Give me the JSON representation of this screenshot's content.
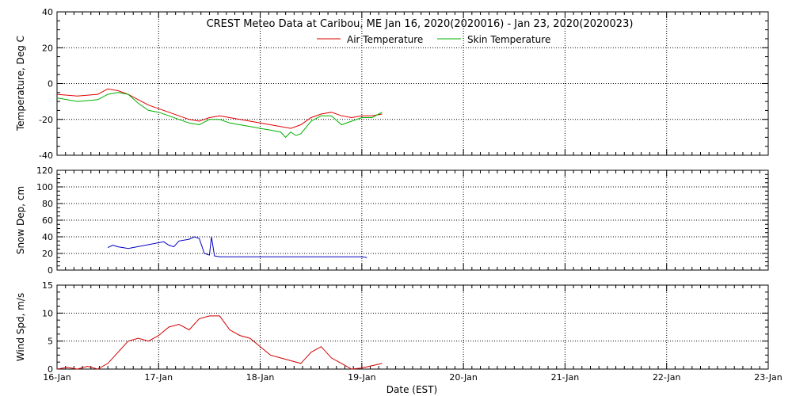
{
  "title": "CREST Meteo Data at Caribou, ME    Jan 16, 2020(2020016) - Jan 23, 2020(2020023)",
  "xlabel": "Date (EST)",
  "x_tick_labels": [
    "16-Jan",
    "17-Jan",
    "18-Jan",
    "19-Jan",
    "20-Jan",
    "21-Jan",
    "22-Jan",
    "23-Jan"
  ],
  "colors": {
    "air": "#e00000",
    "skin": "#00b000",
    "snow": "#0000c0",
    "wind": "#d00000"
  },
  "chart_data": [
    {
      "type": "line",
      "ylabel": "Temperature, Deg C",
      "ylim": [
        -40,
        40
      ],
      "y_ticks": [
        -40,
        -20,
        0,
        20,
        40
      ],
      "xlim": [
        0,
        7
      ],
      "grid": true,
      "legend": "top-center",
      "series": [
        {
          "name": "Air Temperature",
          "x": [
            0.0,
            0.2,
            0.4,
            0.5,
            0.6,
            0.7,
            0.8,
            0.9,
            1.0,
            1.1,
            1.2,
            1.3,
            1.4,
            1.5,
            1.6,
            1.7,
            1.8,
            1.9,
            2.0,
            2.1,
            2.2,
            2.3,
            2.4,
            2.5,
            2.6,
            2.7,
            2.8,
            2.9,
            3.0,
            3.1,
            3.2
          ],
          "y": [
            -6,
            -7,
            -6,
            -3,
            -4,
            -6,
            -9,
            -12,
            -14,
            -16,
            -18,
            -20,
            -21,
            -19,
            -18,
            -19,
            -20,
            -21,
            -22,
            -23,
            -24,
            -25,
            -23,
            -19,
            -17,
            -16,
            -18,
            -19,
            -18,
            -18,
            -17
          ]
        },
        {
          "name": "Skin Temperature",
          "x": [
            0.0,
            0.2,
            0.4,
            0.5,
            0.6,
            0.7,
            0.8,
            0.9,
            1.0,
            1.1,
            1.2,
            1.3,
            1.4,
            1.5,
            1.6,
            1.7,
            1.8,
            1.9,
            2.0,
            2.1,
            2.2,
            2.25,
            2.3,
            2.35,
            2.4,
            2.5,
            2.6,
            2.7,
            2.8,
            2.9,
            3.0,
            3.1,
            3.2
          ],
          "y": [
            -8,
            -10,
            -9,
            -6,
            -5,
            -6,
            -11,
            -15,
            -16,
            -18,
            -20,
            -22,
            -23,
            -20,
            -20,
            -22,
            -23,
            -24,
            -25,
            -26,
            -27,
            -30,
            -27,
            -29,
            -28,
            -21,
            -18,
            -18,
            -23,
            -21,
            -19,
            -19,
            -16
          ]
        }
      ]
    },
    {
      "type": "line",
      "ylabel": "Snow Dep, cm",
      "ylim": [
        0,
        120
      ],
      "y_ticks": [
        0,
        20,
        40,
        60,
        80,
        100,
        120
      ],
      "xlim": [
        0,
        7
      ],
      "grid": true,
      "series": [
        {
          "name": "Snow Depth",
          "x": [
            0.5,
            0.55,
            0.6,
            0.65,
            0.7,
            1.05,
            1.1,
            1.15,
            1.2,
            1.3,
            1.35,
            1.4,
            1.45,
            1.5,
            1.52,
            1.55,
            1.6,
            1.8,
            2.0,
            2.2,
            2.4,
            2.6,
            2.8,
            3.0,
            3.05
          ],
          "y": [
            27,
            30,
            28,
            27,
            26,
            34,
            30,
            28,
            35,
            37,
            40,
            38,
            20,
            18,
            40,
            17,
            16,
            16,
            16,
            16,
            16,
            16,
            16,
            16,
            15
          ]
        }
      ]
    },
    {
      "type": "line",
      "ylabel": "Wind Spd, m/s",
      "ylim": [
        0,
        15
      ],
      "y_ticks": [
        0,
        5,
        10,
        15
      ],
      "xlim": [
        0,
        7
      ],
      "grid": true,
      "series": [
        {
          "name": "Wind Speed",
          "x": [
            0.0,
            0.1,
            0.2,
            0.3,
            0.4,
            0.5,
            0.6,
            0.7,
            0.8,
            0.9,
            1.0,
            1.1,
            1.2,
            1.3,
            1.4,
            1.5,
            1.6,
            1.7,
            1.8,
            1.9,
            2.0,
            2.1,
            2.2,
            2.3,
            2.4,
            2.5,
            2.6,
            2.7,
            2.8,
            2.9,
            3.0,
            3.1,
            3.2
          ],
          "y": [
            0,
            0.3,
            0,
            0.5,
            0,
            1,
            3,
            5,
            5.5,
            5,
            6,
            7.5,
            8,
            7,
            9,
            9.5,
            9.5,
            7,
            6,
            5.5,
            4,
            2.5,
            2,
            1.5,
            1,
            3,
            4,
            2,
            1,
            0,
            0.2,
            0.6,
            1
          ]
        }
      ]
    }
  ]
}
